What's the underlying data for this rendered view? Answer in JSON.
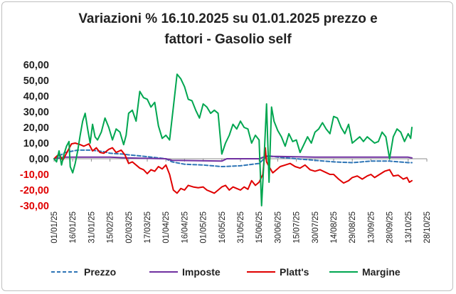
{
  "chart_data": {
    "type": "line",
    "title": "Variazioni % 16.10.2025 su 01.01.2025 prezzo e fattori - Gasolio self",
    "title_lines": [
      "Variazioni % 16.10.2025 su 01.01.2025 prezzo e",
      "fattori - Gasolio self"
    ],
    "xlabel": "",
    "ylabel": "",
    "ylim": [
      -30,
      60
    ],
    "grid": false,
    "legend_position": "bottom",
    "y_ticks": [
      60,
      50,
      40,
      30,
      20,
      10,
      0,
      -10,
      -20,
      -30
    ],
    "y_tick_labels": [
      "60,00",
      "50,00",
      "40,00",
      "30,00",
      "20,00",
      "10,00",
      "0,00",
      "-10,00",
      "-20,00",
      "-30,00"
    ],
    "y_tick_colors": {
      "positive": "#222222",
      "negative": "#e00000"
    },
    "x_tick_labels": [
      "01/01/25",
      "16/01/25",
      "31/01/25",
      "15/02/25",
      "02/03/25",
      "17/03/25",
      "01/04/25",
      "16/04/25",
      "01/05/25",
      "16/05/25",
      "31/05/25",
      "15/06/25",
      "30/06/25",
      "15/07/25",
      "30/07/25",
      "14/08/25",
      "29/08/25",
      "13/09/25",
      "28/09/25",
      "13/10/25",
      "28/10/25"
    ],
    "series": [
      {
        "name": "Prezzo",
        "color": "#2e75b6",
        "dash": "dashed",
        "points": [
          [
            "01/01/25",
            0
          ],
          [
            "10/01/25",
            4
          ],
          [
            "20/01/25",
            5.5
          ],
          [
            "31/01/25",
            5.5
          ],
          [
            "10/02/25",
            4.5
          ],
          [
            "15/02/25",
            3.5
          ],
          [
            "25/02/25",
            3
          ],
          [
            "02/03/25",
            2.5
          ],
          [
            "15/03/25",
            1.5
          ],
          [
            "01/04/25",
            0
          ],
          [
            "06/04/25",
            -2
          ],
          [
            "16/04/25",
            -3.5
          ],
          [
            "01/05/25",
            -4
          ],
          [
            "16/05/25",
            -5
          ],
          [
            "31/05/25",
            -4.5
          ],
          [
            "15/06/25",
            -3
          ],
          [
            "22/06/25",
            2
          ],
          [
            "30/06/25",
            1
          ],
          [
            "15/07/25",
            0
          ],
          [
            "30/07/25",
            -1
          ],
          [
            "14/08/25",
            -2
          ],
          [
            "29/08/25",
            -2.5
          ],
          [
            "13/09/25",
            -1.5
          ],
          [
            "28/09/25",
            -1.5
          ],
          [
            "13/10/25",
            -2.5
          ],
          [
            "16/10/25",
            -2.5
          ]
        ]
      },
      {
        "name": "Imposte",
        "color": "#7030a0",
        "dash": "solid",
        "points": [
          [
            "01/01/25",
            0
          ],
          [
            "10/01/25",
            1
          ],
          [
            "31/01/25",
            1
          ],
          [
            "15/02/25",
            1
          ],
          [
            "02/03/25",
            0.5
          ],
          [
            "01/04/25",
            0
          ],
          [
            "06/04/25",
            -1
          ],
          [
            "16/05/25",
            -1.5
          ],
          [
            "20/05/25",
            0
          ],
          [
            "15/06/25",
            0
          ],
          [
            "20/06/25",
            1.5
          ],
          [
            "30/06/25",
            1.5
          ],
          [
            "30/07/25",
            1
          ],
          [
            "28/09/25",
            1
          ],
          [
            "13/10/25",
            1
          ],
          [
            "16/10/25",
            0.5
          ]
        ]
      },
      {
        "name": "Platt's",
        "color": "#e00000",
        "dash": "solid",
        "points": [
          [
            "01/01/25",
            0
          ],
          [
            "05/01/25",
            3
          ],
          [
            "08/01/25",
            -1
          ],
          [
            "12/01/25",
            5
          ],
          [
            "15/01/25",
            9.5
          ],
          [
            "18/01/25",
            10
          ],
          [
            "22/01/25",
            9
          ],
          [
            "25/01/25",
            8
          ],
          [
            "29/01/25",
            9.5
          ],
          [
            "01/02/25",
            5
          ],
          [
            "04/02/25",
            7
          ],
          [
            "07/02/25",
            4
          ],
          [
            "10/02/25",
            3.5
          ],
          [
            "14/02/25",
            6
          ],
          [
            "17/02/25",
            7
          ],
          [
            "20/02/25",
            4
          ],
          [
            "24/02/25",
            5.5
          ],
          [
            "27/02/25",
            2.5
          ],
          [
            "02/03/25",
            -3
          ],
          [
            "05/03/25",
            -2
          ],
          [
            "08/03/25",
            -4
          ],
          [
            "11/03/25",
            -6
          ],
          [
            "14/03/25",
            -7
          ],
          [
            "17/03/25",
            -9.5
          ],
          [
            "20/03/25",
            -7
          ],
          [
            "23/03/25",
            -8
          ],
          [
            "26/03/25",
            -5
          ],
          [
            "29/03/25",
            -6.5
          ],
          [
            "01/04/25",
            -4
          ],
          [
            "04/04/25",
            -10
          ],
          [
            "07/04/25",
            -20
          ],
          [
            "10/04/25",
            -22
          ],
          [
            "13/04/25",
            -19
          ],
          [
            "16/04/25",
            -20
          ],
          [
            "19/04/25",
            -17
          ],
          [
            "23/04/25",
            -18
          ],
          [
            "27/04/25",
            -18.5
          ],
          [
            "01/05/25",
            -18
          ],
          [
            "04/05/25",
            -20
          ],
          [
            "07/05/25",
            -21
          ],
          [
            "10/05/25",
            -22
          ],
          [
            "13/05/25",
            -20
          ],
          [
            "16/05/25",
            -18
          ],
          [
            "19/05/25",
            -17
          ],
          [
            "22/05/25",
            -20
          ],
          [
            "25/05/25",
            -18
          ],
          [
            "28/05/25",
            -19
          ],
          [
            "31/05/25",
            -20
          ],
          [
            "03/06/25",
            -18
          ],
          [
            "06/06/25",
            -19.5
          ],
          [
            "09/06/25",
            -14
          ],
          [
            "12/06/25",
            -17
          ],
          [
            "15/06/25",
            -15
          ],
          [
            "18/06/25",
            -10
          ],
          [
            "20/06/25",
            7
          ],
          [
            "21/06/25",
            -2
          ],
          [
            "23/06/25",
            -5
          ],
          [
            "26/06/25",
            -9
          ],
          [
            "29/06/25",
            -7
          ],
          [
            "02/07/25",
            -5
          ],
          [
            "06/07/25",
            -4
          ],
          [
            "10/07/25",
            -3
          ],
          [
            "14/07/25",
            -5
          ],
          [
            "18/07/25",
            -6
          ],
          [
            "22/07/25",
            -4
          ],
          [
            "26/07/25",
            -7
          ],
          [
            "30/07/25",
            -8
          ],
          [
            "03/08/25",
            -7
          ],
          [
            "07/08/25",
            -8.5
          ],
          [
            "11/08/25",
            -10
          ],
          [
            "14/08/25",
            -10
          ],
          [
            "18/08/25",
            -13
          ],
          [
            "22/08/25",
            -15.5
          ],
          [
            "26/08/25",
            -14
          ],
          [
            "29/08/25",
            -12
          ],
          [
            "02/09/25",
            -11
          ],
          [
            "06/09/25",
            -13
          ],
          [
            "10/09/25",
            -11
          ],
          [
            "13/09/25",
            -10
          ],
          [
            "16/09/25",
            -12
          ],
          [
            "20/09/25",
            -10
          ],
          [
            "24/09/25",
            -8
          ],
          [
            "28/09/25",
            -7
          ],
          [
            "01/10/25",
            -11
          ],
          [
            "05/10/25",
            -10.5
          ],
          [
            "09/10/25",
            -13
          ],
          [
            "12/10/25",
            -12
          ],
          [
            "14/10/25",
            -15
          ],
          [
            "16/10/25",
            -14
          ]
        ]
      },
      {
        "name": "Margine",
        "color": "#00a650",
        "dash": "solid",
        "points": [
          [
            "01/01/25",
            0
          ],
          [
            "03/01/25",
            -2
          ],
          [
            "05/01/25",
            5
          ],
          [
            "07/01/25",
            -4
          ],
          [
            "09/01/25",
            3
          ],
          [
            "11/01/25",
            8
          ],
          [
            "13/01/25",
            11
          ],
          [
            "14/01/25",
            -5
          ],
          [
            "16/01/25",
            -9
          ],
          [
            "18/01/25",
            -3
          ],
          [
            "20/01/25",
            5
          ],
          [
            "22/01/25",
            15
          ],
          [
            "24/01/25",
            24
          ],
          [
            "26/01/25",
            29
          ],
          [
            "28/01/25",
            19
          ],
          [
            "30/01/25",
            10
          ],
          [
            "01/02/25",
            22
          ],
          [
            "03/02/25",
            14
          ],
          [
            "05/02/25",
            12
          ],
          [
            "08/02/25",
            17
          ],
          [
            "11/02/25",
            26
          ],
          [
            "14/02/25",
            20
          ],
          [
            "17/02/25",
            12
          ],
          [
            "20/02/25",
            19
          ],
          [
            "23/02/25",
            17
          ],
          [
            "26/02/25",
            9
          ],
          [
            "28/02/25",
            15
          ],
          [
            "02/03/25",
            29
          ],
          [
            "05/03/25",
            31
          ],
          [
            "08/03/25",
            24
          ],
          [
            "11/03/25",
            43
          ],
          [
            "14/03/25",
            39
          ],
          [
            "17/03/25",
            38
          ],
          [
            "20/03/25",
            33
          ],
          [
            "23/03/25",
            36
          ],
          [
            "26/03/25",
            21
          ],
          [
            "29/03/25",
            13
          ],
          [
            "01/04/25",
            15
          ],
          [
            "04/04/25",
            12
          ],
          [
            "07/04/25",
            33
          ],
          [
            "10/04/25",
            54
          ],
          [
            "13/04/25",
            51
          ],
          [
            "16/04/25",
            46
          ],
          [
            "19/04/25",
            38
          ],
          [
            "22/04/25",
            37
          ],
          [
            "25/04/25",
            31
          ],
          [
            "28/04/25",
            26
          ],
          [
            "01/05/25",
            35
          ],
          [
            "04/05/25",
            33
          ],
          [
            "07/05/25",
            29
          ],
          [
            "10/05/25",
            31
          ],
          [
            "13/05/25",
            29
          ],
          [
            "16/05/25",
            3
          ],
          [
            "19/05/25",
            10
          ],
          [
            "22/05/25",
            15
          ],
          [
            "25/05/25",
            22
          ],
          [
            "28/05/25",
            19
          ],
          [
            "31/05/25",
            24
          ],
          [
            "03/06/25",
            20
          ],
          [
            "06/06/25",
            19
          ],
          [
            "09/06/25",
            10
          ],
          [
            "12/06/25",
            15
          ],
          [
            "15/06/25",
            12
          ],
          [
            "17/06/25",
            -30
          ],
          [
            "19/06/25",
            0
          ],
          [
            "21/06/25",
            35
          ],
          [
            "23/06/25",
            -15
          ],
          [
            "25/06/25",
            33
          ],
          [
            "27/06/25",
            24
          ],
          [
            "30/06/25",
            18
          ],
          [
            "03/07/25",
            14
          ],
          [
            "06/07/25",
            8
          ],
          [
            "09/07/25",
            16
          ],
          [
            "12/07/25",
            11
          ],
          [
            "15/07/25",
            12
          ],
          [
            "18/07/25",
            4
          ],
          [
            "21/07/25",
            9
          ],
          [
            "24/07/25",
            14
          ],
          [
            "27/07/25",
            10
          ],
          [
            "30/07/25",
            17
          ],
          [
            "02/08/25",
            19
          ],
          [
            "05/08/25",
            23
          ],
          [
            "08/08/25",
            19
          ],
          [
            "11/08/25",
            16
          ],
          [
            "14/08/25",
            27
          ],
          [
            "17/08/25",
            26
          ],
          [
            "20/08/25",
            20
          ],
          [
            "23/08/25",
            16
          ],
          [
            "26/08/25",
            22
          ],
          [
            "29/08/25",
            10
          ],
          [
            "01/09/25",
            12
          ],
          [
            "04/09/25",
            14
          ],
          [
            "07/09/25",
            11
          ],
          [
            "10/09/25",
            14
          ],
          [
            "13/09/25",
            12
          ],
          [
            "16/09/25",
            10
          ],
          [
            "19/09/25",
            11
          ],
          [
            "22/09/25",
            17
          ],
          [
            "25/09/25",
            14
          ],
          [
            "28/09/25",
            0
          ],
          [
            "01/10/25",
            14
          ],
          [
            "04/10/25",
            19
          ],
          [
            "07/10/25",
            17
          ],
          [
            "10/10/25",
            11
          ],
          [
            "13/10/25",
            16
          ],
          [
            "15/10/25",
            13
          ],
          [
            "16/10/25",
            20
          ]
        ]
      }
    ]
  }
}
